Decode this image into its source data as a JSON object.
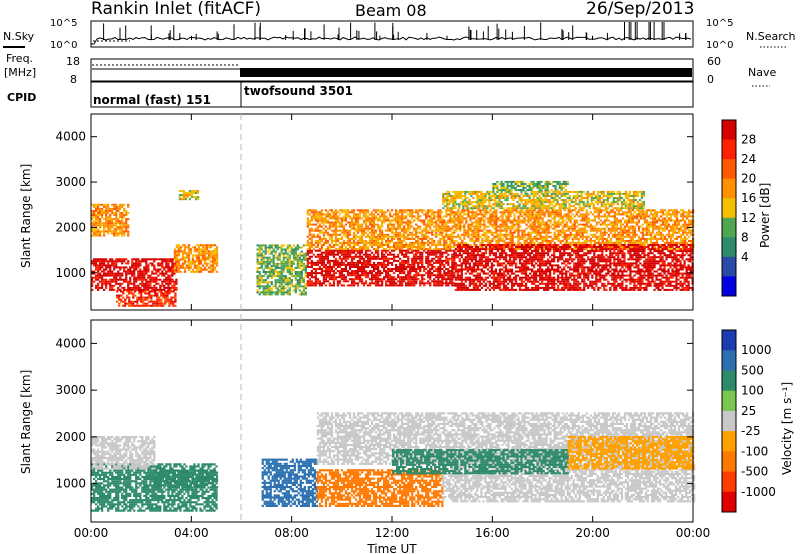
{
  "header": {
    "station": "Rankin Inlet (fitACF)",
    "beam": "Beam 08",
    "date": "26/Sep/2013"
  },
  "top_panels": {
    "nsky_label": "N.Sky",
    "nsky_scale": [
      "10^5",
      "10^0"
    ],
    "nsearch_label": "N.Search",
    "nsearch_scale": [
      "10^5",
      "10^0"
    ],
    "freq_label_1": "Freq.",
    "freq_label_2": "[MHz]",
    "freq_ticks": [
      "18",
      "8"
    ],
    "nave_label": "Nave",
    "nave_ticks": [
      "60",
      "0"
    ],
    "cpid_label": "CPID",
    "cpid_segments": [
      {
        "label": "normal (fast) 151",
        "start_hour": 0,
        "end_hour": 6
      },
      {
        "label": "twofsound 3501",
        "start_hour": 6,
        "end_hour": 24
      }
    ]
  },
  "power_colorbar": {
    "label": "Power [dB]",
    "ticks": [
      "28",
      "24",
      "20",
      "16",
      "12",
      "8",
      "4"
    ],
    "colors": [
      "#d40000",
      "#ff2000",
      "#ff5a00",
      "#ff9000",
      "#f2c000",
      "#4fa84f",
      "#2d8a6a",
      "#2a4aa8",
      "#0000e0"
    ]
  },
  "velocity_colorbar": {
    "label": "Velocity [m s⁻¹]",
    "ticks": [
      "1000",
      "500",
      "100",
      "25",
      "-25",
      "-100",
      "-500",
      "-1000"
    ],
    "colors": [
      "#1a3cb0",
      "#2a70b0",
      "#2d8a6a",
      "#78c850",
      "#c8c8c8",
      "#ffa000",
      "#ff7800",
      "#ff3c00",
      "#e00000"
    ]
  },
  "chart_data": [
    {
      "type": "heatmap",
      "title": "Power",
      "ylabel": "Slant Range [km]",
      "ylim": [
        180,
        4500
      ],
      "yticks": [
        "1000",
        "2000",
        "3000",
        "4000"
      ],
      "xlim": [
        0,
        24
      ],
      "xticks": [
        "00:00",
        "04:00",
        "08:00",
        "12:00",
        "16:00",
        "20:00",
        "00:00"
      ],
      "regions": [
        {
          "t": [
            0.0,
            3.4
          ],
          "r": [
            600,
            1300
          ],
          "level": 28
        },
        {
          "t": [
            1.0,
            3.4
          ],
          "r": [
            250,
            600
          ],
          "level": 24
        },
        {
          "t": [
            3.3,
            5.0
          ],
          "r": [
            1000,
            1600
          ],
          "level": 16
        },
        {
          "t": [
            3.5,
            4.3
          ],
          "r": [
            2600,
            2800
          ],
          "level": 12
        },
        {
          "t": [
            0.0,
            1.5
          ],
          "r": [
            1800,
            2500
          ],
          "level": 16
        },
        {
          "t": [
            6.6,
            8.6
          ],
          "r": [
            500,
            1600
          ],
          "level": 8
        },
        {
          "t": [
            8.6,
            14.5
          ],
          "r": [
            700,
            1500
          ],
          "level": 28
        },
        {
          "t": [
            8.6,
            24.0
          ],
          "r": [
            1500,
            2400
          ],
          "level": 16
        },
        {
          "t": [
            14.5,
            24.0
          ],
          "r": [
            600,
            1600
          ],
          "level": 28
        },
        {
          "t": [
            14.0,
            22.0
          ],
          "r": [
            2400,
            2800
          ],
          "level": 12
        },
        {
          "t": [
            16.0,
            19.0
          ],
          "r": [
            2800,
            3000
          ],
          "level": 8
        }
      ]
    },
    {
      "type": "heatmap",
      "title": "Velocity",
      "ylabel": "Slant Range [km]",
      "ylim": [
        180,
        4500
      ],
      "yticks": [
        "1000",
        "2000",
        "3000",
        "4000"
      ],
      "xlim": [
        0,
        24
      ],
      "xticks": [
        "00:00",
        "04:00",
        "08:00",
        "12:00",
        "16:00",
        "20:00",
        "00:00"
      ],
      "xlabel": "Time UT",
      "regions": [
        {
          "t": [
            0.0,
            5.0
          ],
          "r": [
            400,
            1400
          ],
          "level": 100
        },
        {
          "t": [
            0.0,
            2.5
          ],
          "r": [
            1300,
            2000
          ],
          "level": 0
        },
        {
          "t": [
            2.5,
            5.0
          ],
          "r": [
            900,
            1300
          ],
          "level": 100
        },
        {
          "t": [
            6.8,
            9.0
          ],
          "r": [
            500,
            1500
          ],
          "level": 500
        },
        {
          "t": [
            9.0,
            14.0
          ],
          "r": [
            500,
            1300
          ],
          "level": -500
        },
        {
          "t": [
            9.0,
            24.0
          ],
          "r": [
            1400,
            2500
          ],
          "level": 0
        },
        {
          "t": [
            14.0,
            24.0
          ],
          "r": [
            600,
            1400
          ],
          "level": 0
        },
        {
          "t": [
            12.0,
            19.0
          ],
          "r": [
            1200,
            1700
          ],
          "level": 100
        },
        {
          "t": [
            19.0,
            24.0
          ],
          "r": [
            1300,
            2000
          ],
          "level": -100
        }
      ]
    }
  ]
}
